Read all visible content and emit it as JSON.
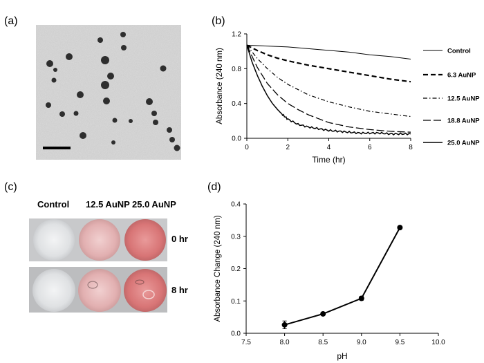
{
  "panels": {
    "a": "(a)",
    "b": "(b)",
    "c": "(c)",
    "d": "(d)"
  },
  "wells": {
    "columns": [
      "Control",
      "12.5 AuNP",
      "25.0 AuNP"
    ],
    "rows": [
      "0 hr",
      "8 hr"
    ],
    "colors": {
      "control": "#e4e6e8",
      "auNP12": "#e9b9b9",
      "auNP25": "#dc7d7d"
    }
  },
  "chart_data": [
    {
      "type": "line",
      "panel": "(b)",
      "xlabel": "Time (hr)",
      "ylabel": "Absorbance (240 nm)",
      "xlim": [
        0,
        8
      ],
      "ylim": [
        0,
        1.2
      ],
      "xticks": [
        "0",
        "2",
        "4",
        "6",
        "8"
      ],
      "yticks": [
        "0.0",
        "0.4",
        "0.8",
        "1.2"
      ],
      "grid": false,
      "legend_position": "right",
      "series": [
        {
          "name": "Control",
          "dash": "solid-thin",
          "x": [
            0,
            1,
            2,
            3,
            4,
            5,
            6,
            7,
            8
          ],
          "values": [
            1.07,
            1.06,
            1.05,
            1.03,
            1.01,
            0.99,
            0.96,
            0.94,
            0.91
          ]
        },
        {
          "name": "6.3 AuNP",
          "dash": "dash",
          "x": [
            0,
            0.5,
            1,
            1.5,
            2,
            3,
            4,
            5,
            6,
            7,
            8
          ],
          "values": [
            1.07,
            1.01,
            0.96,
            0.92,
            0.89,
            0.84,
            0.8,
            0.76,
            0.72,
            0.68,
            0.65
          ]
        },
        {
          "name": "12.5 AuNP",
          "dash": "dashdot",
          "x": [
            0,
            0.5,
            1,
            1.5,
            2,
            3,
            4,
            5,
            6,
            7,
            8
          ],
          "values": [
            1.07,
            0.92,
            0.8,
            0.7,
            0.62,
            0.5,
            0.42,
            0.36,
            0.31,
            0.28,
            0.25
          ]
        },
        {
          "name": "18.8 AuNP",
          "dash": "longdash",
          "x": [
            0,
            0.5,
            1,
            1.5,
            2,
            2.5,
            3,
            4,
            5,
            6,
            7,
            8
          ],
          "values": [
            1.07,
            0.82,
            0.63,
            0.5,
            0.4,
            0.33,
            0.27,
            0.18,
            0.13,
            0.1,
            0.08,
            0.07
          ]
        },
        {
          "name": "25.0 AuNP",
          "dash": "solid",
          "x": [
            0,
            0.25,
            0.5,
            0.75,
            1,
            1.25,
            1.5,
            1.75,
            2,
            2.5,
            3,
            3.5,
            4,
            4.5,
            5,
            5.5,
            6,
            6.5,
            7,
            7.5,
            8
          ],
          "values": [
            1.07,
            0.88,
            0.73,
            0.6,
            0.49,
            0.4,
            0.33,
            0.27,
            0.22,
            0.16,
            0.13,
            0.11,
            0.09,
            0.08,
            0.07,
            0.06,
            0.06,
            0.06,
            0.05,
            0.05,
            0.05
          ]
        }
      ]
    },
    {
      "type": "line",
      "panel": "(d)",
      "xlabel": "pH",
      "ylabel": "Absorbance Change (240 nm)",
      "xlim": [
        7.5,
        10.0
      ],
      "ylim": [
        0.0,
        0.4
      ],
      "xticks": [
        "7.5",
        "8.0",
        "8.5",
        "9.0",
        "9.5",
        "10.0"
      ],
      "yticks": [
        "0.0",
        "0.1",
        "0.2",
        "0.3",
        "0.4"
      ],
      "grid": false,
      "series": [
        {
          "x": [
            8.0,
            8.5,
            9.0,
            9.5
          ],
          "values": [
            0.026,
            0.06,
            0.108,
            0.327
          ],
          "errors": [
            0.012,
            0.004,
            0.006,
            0.003
          ]
        }
      ]
    }
  ]
}
